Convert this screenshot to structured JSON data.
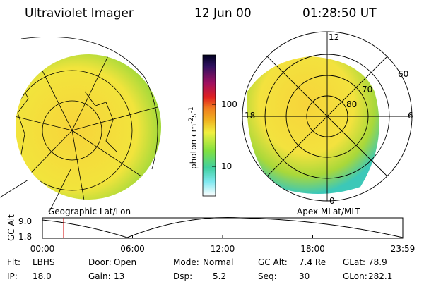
{
  "header": {
    "title": "Ultraviolet Imager",
    "date": "12 Jun 00",
    "time": "01:28:50 UT"
  },
  "geo_panel": {
    "label": "Geographic Lat/Lon"
  },
  "colorbar": {
    "unit": "photon cm",
    "exp1": "-2",
    "unit2": "s",
    "exp2": "-1",
    "ticks": [
      "100",
      "10"
    ]
  },
  "polar_panel": {
    "label": "Apex MLat/MLT",
    "mlt_labels": {
      "top": "12",
      "right": "6",
      "bottom": "0",
      "left": "18"
    },
    "lat_labels": [
      "60",
      "70",
      "80"
    ]
  },
  "altitude_plot": {
    "label": "GC Alt",
    "ticks": [
      "9.0",
      "1.8"
    ],
    "time_labels": [
      "00:00",
      "06:00",
      "12:00",
      "18:00",
      "23:59"
    ]
  },
  "status": {
    "rows": [
      [
        {
          "label": "Flt:",
          "value": "LBHS"
        },
        {
          "label": "Door:",
          "value": "Open"
        },
        {
          "label": "Mode:",
          "value": "Normal"
        },
        {
          "label": "GC Alt:",
          "value": "7.4 Re"
        },
        {
          "label": "GLat:",
          "value": "78.9"
        }
      ],
      [
        {
          "label": "IP:",
          "value": "18.0"
        },
        {
          "label": "Gain:",
          "value": "13"
        },
        {
          "label": "Dsp:",
          "value": "5.2"
        },
        {
          "label": "Seq:",
          "value": "30"
        },
        {
          "label": "GLon:",
          "value": "282.1"
        }
      ]
    ]
  }
}
